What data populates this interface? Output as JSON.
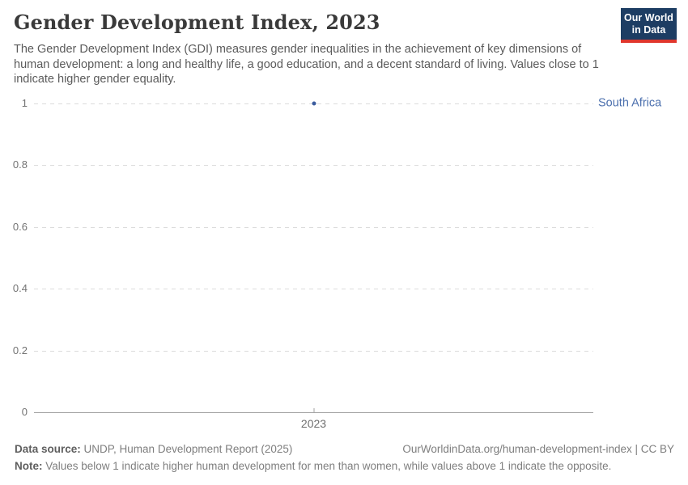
{
  "header": {
    "title": "Gender Development Index, 2023",
    "subtitle": "The Gender Development Index (GDI) measures gender inequalities in the achievement of key dimensions of human development: a long and healthy life, a good education, and a decent standard of living. Values close to 1 indicate higher gender equality.",
    "logo": {
      "line1": "Our World",
      "line2": "in Data",
      "bg_color": "#1d3d63",
      "stripe_color": "#e0362c"
    }
  },
  "chart_data": {
    "type": "scatter",
    "title": "Gender Development Index, 2023",
    "x": [
      2023
    ],
    "xticks": [
      "2023"
    ],
    "series": [
      {
        "name": "South Africa",
        "values": [
          1.0
        ],
        "point_color": "#3b5c9e",
        "label_color": "#4c70ae"
      }
    ],
    "xlabel": "",
    "ylabel": "",
    "ylim": [
      0,
      1
    ],
    "yticks": [
      0,
      0.2,
      0.4,
      0.6,
      0.8,
      1
    ],
    "grid": "horizontal-dashed",
    "legend_position": "right-of-point"
  },
  "footer": {
    "source_label": "Data source:",
    "source_text": " UNDP, Human Development Report (2025)",
    "link_text": "OurWorldinData.org/human-development-index | CC BY",
    "note_label": "Note:",
    "note_text": " Values below 1 indicate higher human development for men than women, while values above 1 indicate the opposite."
  }
}
